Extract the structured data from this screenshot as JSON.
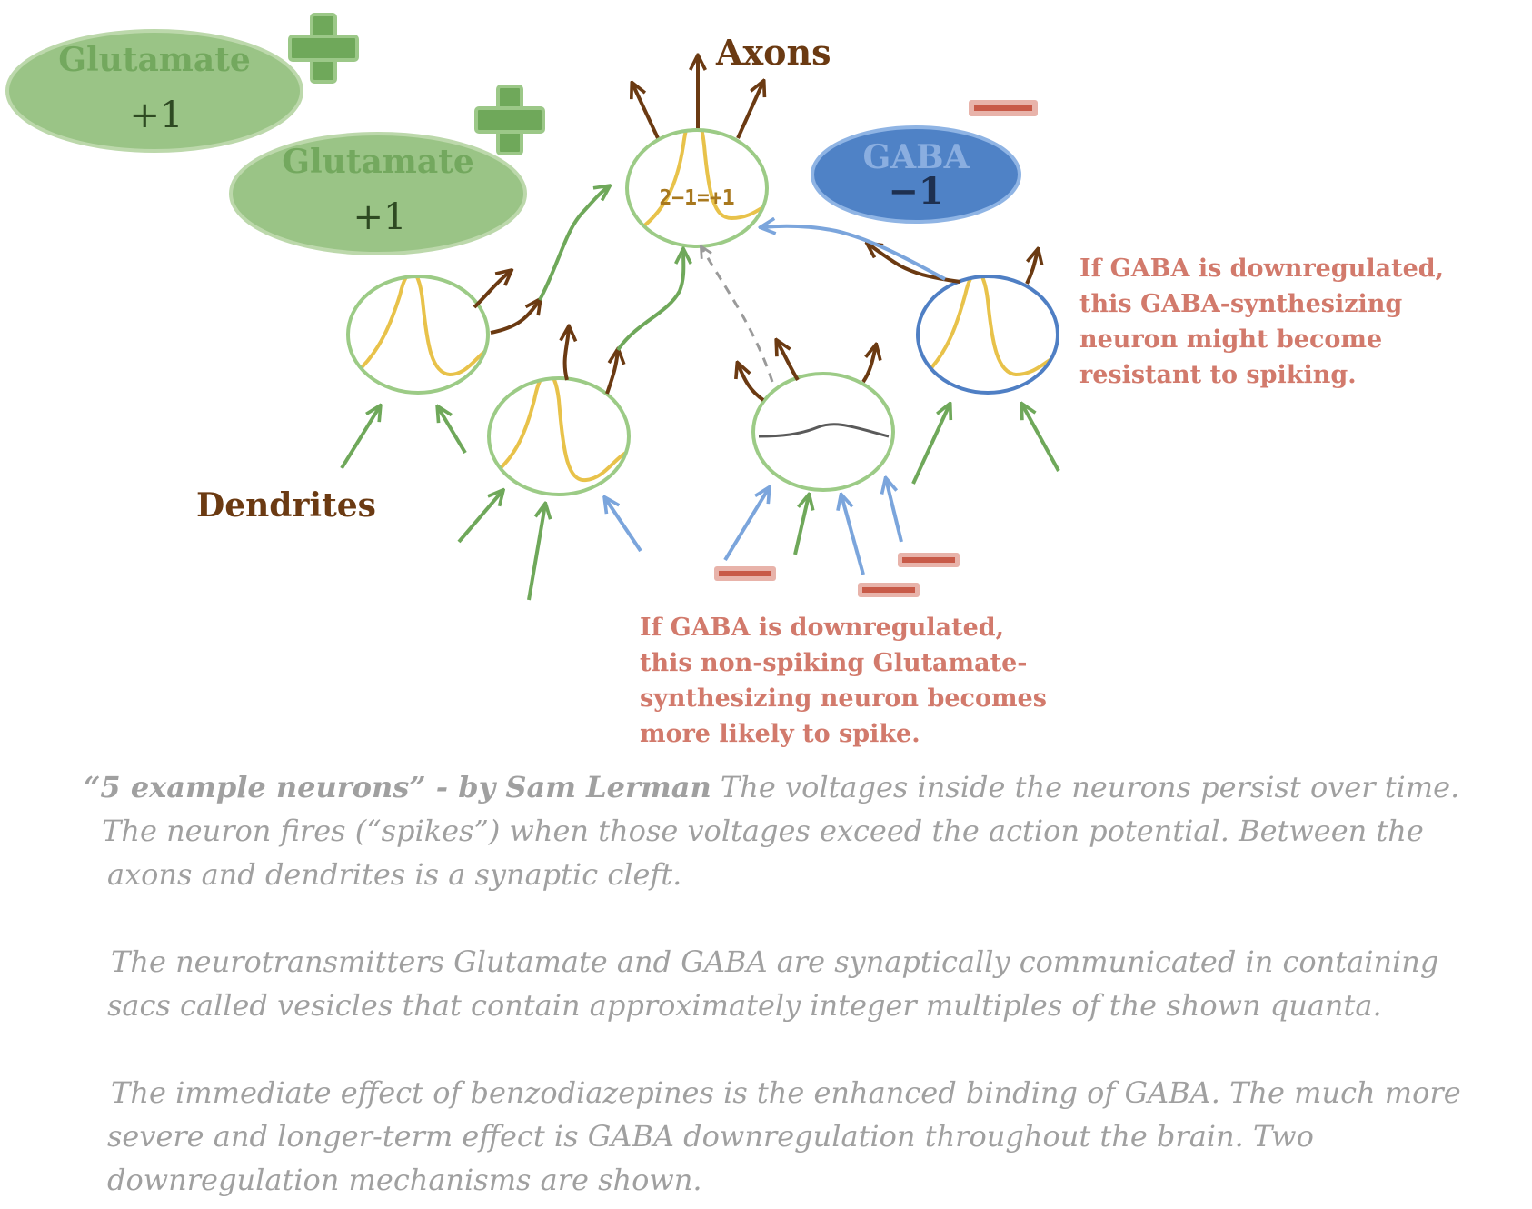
{
  "labels": {
    "axons": "Axons",
    "dendrites": "Dendrites",
    "sum": "2−1=+1"
  },
  "vesicles": {
    "glutamate_1": {
      "name": "Glutamate",
      "value": "+1"
    },
    "glutamate_2": {
      "name": "Glutamate",
      "value": "+1"
    },
    "gaba": {
      "name": "GABA",
      "value": "−1"
    }
  },
  "notes": {
    "gaba_neuron": [
      "If GABA is downregulated,",
      "this GABA-synthesizing",
      "neuron might become",
      "resistant to spiking."
    ],
    "glutamate_neuron": [
      "If GABA is downregulated,",
      "this non-spiking Glutamate-",
      "synthesizing neuron becomes",
      "more likely to spike."
    ]
  },
  "caption": {
    "credit": "“5 example neurons” - by Sam Lerman",
    "lines": [
      " The voltages inside the neurons persist over time.",
      "The neuron fires (“spikes”) when those voltages exceed the action potential.  Between the",
      "axons and dendrites is a synaptic cleft.",
      "The neurotransmitters Glutamate and GABA  are synaptically communicated in containing",
      "sacs called vesicles that contain approximately integer multiples of the shown quanta.",
      "The immediate effect of benzodiazepines is the enhanced binding of GABA. The much more",
      "severe and longer-term effect is GABA downregulation throughout the brain. Two",
      "downregulation mechanisms are shown."
    ]
  },
  "colors": {
    "glutamate": "#6fa85a",
    "gaba": "#7ba5dc",
    "axon": "#6b3a12",
    "voltage": "#e8c24a",
    "note": "#d27a6c",
    "caption": "#a0a0a0"
  },
  "icons": [
    "plus-icon",
    "minus-icon",
    "arrow-icon"
  ]
}
